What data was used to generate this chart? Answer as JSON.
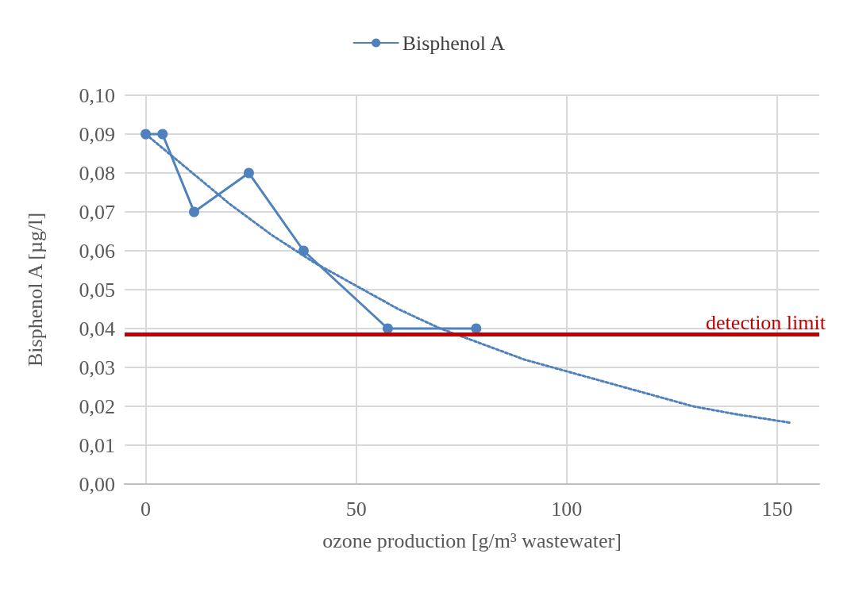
{
  "chart_data": {
    "type": "line",
    "xlabel": "ozone production [g/m³ wastewater]",
    "ylabel": "Bisphenol A [µg/l]",
    "xlim": [
      -5,
      160
    ],
    "xticks": [
      0,
      50,
      100,
      150
    ],
    "ylim": [
      0,
      0.1
    ],
    "yticks": [
      {
        "value": 0,
        "label": "0,00"
      },
      {
        "value": 0.01,
        "label": "0,01"
      },
      {
        "value": 0.02,
        "label": "0,02"
      },
      {
        "value": 0.03,
        "label": "0,03"
      },
      {
        "value": 0.04,
        "label": "0,04"
      },
      {
        "value": 0.05,
        "label": "0,05"
      },
      {
        "value": 0.06,
        "label": "0,06"
      },
      {
        "value": 0.07,
        "label": "0,07"
      },
      {
        "value": 0.08,
        "label": "0,08"
      },
      {
        "value": 0.09,
        "label": "0,09"
      },
      {
        "value": 0.1,
        "label": "0,10"
      }
    ],
    "grid": true,
    "legend": "top",
    "series": [
      {
        "name": "Bisphenol A",
        "color": "#4f81bd",
        "marker": "circle",
        "line_style": "solid",
        "x": [
          0,
          4,
          11.5,
          24.5,
          37.5,
          57.5,
          78.5
        ],
        "values": [
          0.09,
          0.09,
          0.07,
          0.08,
          0.06,
          0.04,
          0.04
        ]
      },
      {
        "color": "#4f81bd",
        "marker": "none",
        "line_style": "dotted",
        "x": [
          0,
          10,
          20,
          30,
          40,
          50,
          60,
          70,
          80,
          90,
          100,
          110,
          120,
          130,
          140,
          153
        ],
        "values": [
          0.09,
          0.081,
          0.072,
          0.064,
          0.057,
          0.051,
          0.045,
          0.04,
          0.036,
          0.032,
          0.029,
          0.026,
          0.023,
          0.02,
          0.018,
          0.0158
        ]
      }
    ],
    "ref_lines": [
      {
        "axis": "y",
        "value": 0.0385,
        "label": "detection limit",
        "color": "#c00000",
        "line_style": "solid"
      }
    ]
  }
}
